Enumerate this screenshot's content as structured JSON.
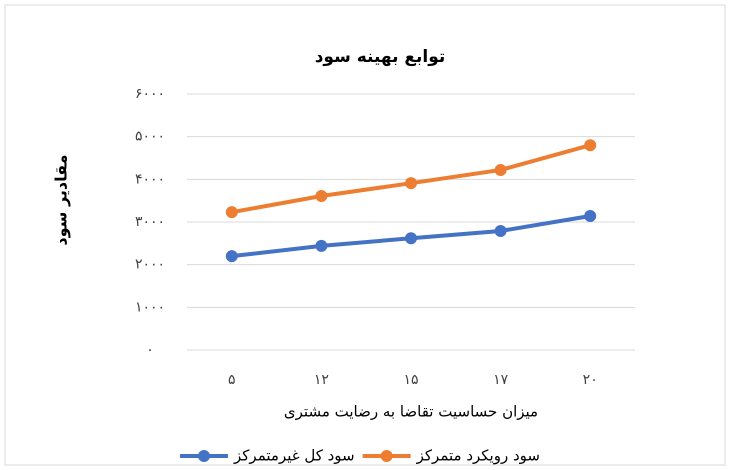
{
  "chart_data": {
    "type": "line",
    "title": "توابع بهینه سود",
    "y_label": "مقادیر سود",
    "x_label": "میزان حساسیت تقاضا به رضایت مشتری",
    "categories": [
      "۵",
      "۱۲",
      "۱۵",
      "۱۷",
      "۲۰"
    ],
    "series": [
      {
        "name": "سود رویکرد متمرکز",
        "color": "#ed7d31",
        "values": [
          3230,
          3610,
          3910,
          4220,
          4800
        ]
      },
      {
        "name": "سود کل غیرمتمرکز",
        "color": "#4472c4",
        "values": [
          2200,
          2440,
          2620,
          2790,
          3140
        ]
      }
    ],
    "ylim": [
      0,
      6000
    ],
    "yticks": [
      {
        "value": 0,
        "label": "۰"
      },
      {
        "value": 1000,
        "label": "۱۰۰۰"
      },
      {
        "value": 2000,
        "label": "۲۰۰۰"
      },
      {
        "value": 3000,
        "label": "۳۰۰۰"
      },
      {
        "value": 4000,
        "label": "۴۰۰۰"
      },
      {
        "value": 5000,
        "label": "۵۰۰۰"
      },
      {
        "value": 6000,
        "label": "۶۰۰۰"
      }
    ],
    "grid": true,
    "legend": "bottom"
  }
}
